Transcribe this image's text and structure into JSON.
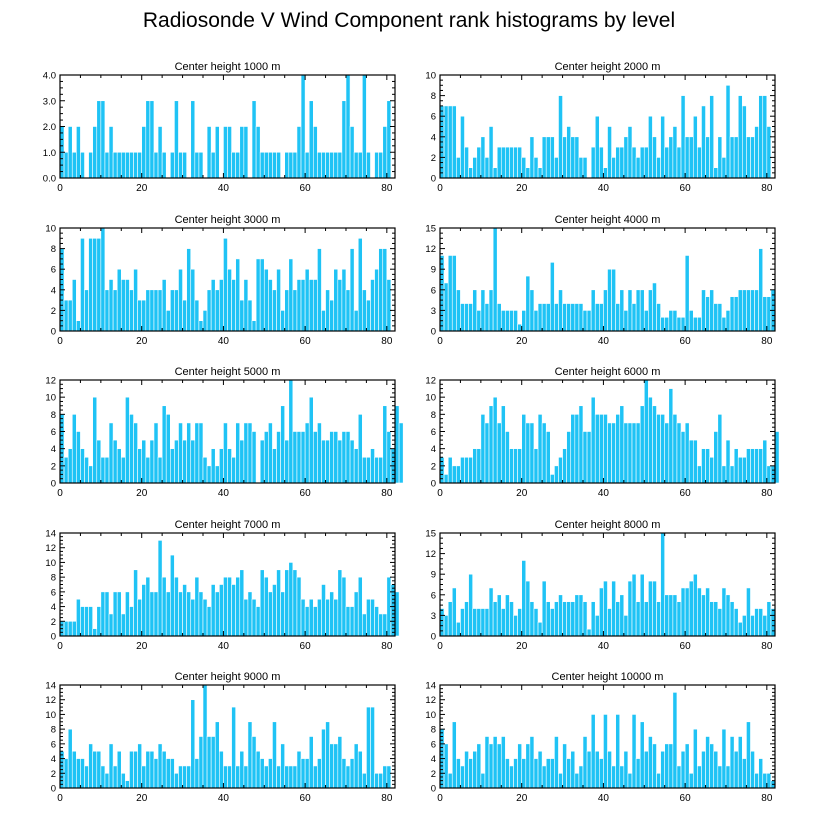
{
  "page": {
    "title": "Radiosonde V Wind Component rank histograms by level"
  },
  "style": {
    "bar_color": "#1FC3F5",
    "bar_edge": "#ffffff",
    "axis_color": "#000000"
  },
  "chart_data": [
    {
      "type": "bar",
      "title": "Center height 1000 m",
      "xlim": [
        0,
        82
      ],
      "ylim": [
        0,
        4
      ],
      "xticks": [
        0,
        20,
        40,
        60,
        80
      ],
      "yticks": [
        0,
        1,
        2,
        3,
        4
      ],
      "ytick_labels": [
        "0.0",
        "1.0",
        "2.0",
        "3.0",
        "4.0"
      ],
      "values": [
        2,
        1,
        2,
        1,
        2,
        1,
        0,
        1,
        2,
        3,
        3,
        1,
        2,
        1,
        1,
        1,
        1,
        1,
        1,
        1,
        2,
        3,
        3,
        1,
        2,
        1,
        0,
        1,
        3,
        1,
        1,
        0,
        3,
        1,
        1,
        0,
        2,
        1,
        2,
        0,
        2,
        2,
        1,
        1,
        2,
        2,
        0,
        3,
        2,
        1,
        1,
        1,
        1,
        1,
        0,
        1,
        1,
        1,
        2,
        4,
        1,
        3,
        2,
        1,
        1,
        1,
        1,
        1,
        1,
        3,
        4,
        2,
        1,
        1,
        4,
        1,
        0,
        1,
        1,
        2,
        3
      ]
    },
    {
      "type": "bar",
      "title": "Center height 2000 m",
      "xlim": [
        0,
        82
      ],
      "ylim": [
        0,
        10
      ],
      "xticks": [
        0,
        20,
        40,
        60,
        80
      ],
      "yticks": [
        0,
        2,
        4,
        6,
        8,
        10
      ],
      "ytick_labels": [
        "0",
        "2",
        "4",
        "6",
        "8",
        "10"
      ],
      "values": [
        7,
        7,
        7,
        7,
        2,
        6,
        3,
        1,
        2,
        3,
        4,
        2,
        5,
        1,
        3,
        3,
        3,
        3,
        3,
        3,
        2,
        1,
        4,
        2,
        1,
        4,
        4,
        4,
        2,
        8,
        4,
        5,
        4,
        4,
        2,
        2,
        0,
        3,
        6,
        3,
        1,
        5,
        2,
        3,
        3,
        4,
        5,
        3,
        2,
        3,
        3,
        6,
        4,
        2,
        6,
        3,
        4,
        5,
        3,
        8,
        4,
        4,
        6,
        3,
        7,
        4,
        8,
        1,
        4,
        2,
        9,
        4,
        4,
        8,
        7,
        4,
        4,
        5,
        8,
        8,
        5
      ]
    },
    {
      "type": "bar",
      "title": "Center height 3000 m",
      "xlim": [
        0,
        82
      ],
      "ylim": [
        0,
        10
      ],
      "xticks": [
        0,
        20,
        40,
        60,
        80
      ],
      "yticks": [
        0,
        2,
        4,
        6,
        8,
        10
      ],
      "ytick_labels": [
        "0",
        "2",
        "4",
        "6",
        "8",
        "10"
      ],
      "values": [
        8,
        3,
        3,
        5,
        1,
        9,
        4,
        9,
        9,
        9,
        10,
        4,
        5,
        4,
        6,
        5,
        5,
        4,
        6,
        3,
        3,
        4,
        4,
        4,
        4,
        5,
        2,
        4,
        4,
        6,
        3,
        8,
        6,
        3,
        1,
        2,
        4,
        5,
        4,
        5,
        9,
        6,
        5,
        7,
        3,
        5,
        3,
        1,
        7,
        7,
        6,
        5,
        4,
        6,
        2,
        4,
        7,
        4,
        5,
        5,
        6,
        5,
        5,
        8,
        2,
        4,
        3,
        6,
        5,
        6,
        4,
        8,
        2,
        9,
        4,
        3,
        5,
        6,
        8,
        8,
        5
      ]
    },
    {
      "type": "bar",
      "title": "Center height 4000 m",
      "xlim": [
        0,
        82
      ],
      "ylim": [
        0,
        15
      ],
      "xticks": [
        0,
        20,
        40,
        60,
        80
      ],
      "yticks": [
        0,
        3,
        6,
        9,
        12,
        15
      ],
      "ytick_labels": [
        "0",
        "3",
        "6",
        "9",
        "12",
        "15"
      ],
      "values": [
        11,
        7,
        11,
        11,
        6,
        4,
        4,
        4,
        6,
        3,
        6,
        4,
        6,
        15,
        4,
        3,
        3,
        3,
        3,
        1,
        3,
        8,
        6,
        3,
        4,
        4,
        4,
        10,
        4,
        6,
        4,
        4,
        4,
        4,
        4,
        3,
        3,
        6,
        4,
        4,
        6,
        9,
        9,
        4,
        6,
        3,
        6,
        4,
        6,
        6,
        3,
        6,
        7,
        4,
        2,
        2,
        3,
        3,
        2,
        2,
        11,
        3,
        2,
        2,
        6,
        5,
        6,
        4,
        4,
        2,
        3,
        5,
        5,
        6,
        6,
        6,
        6,
        6,
        12,
        5,
        5,
        6
      ]
    },
    {
      "type": "bar",
      "title": "Center height 5000 m",
      "xlim": [
        0,
        82
      ],
      "ylim": [
        0,
        12
      ],
      "xticks": [
        0,
        20,
        40,
        60,
        80
      ],
      "yticks": [
        0,
        2,
        4,
        6,
        8,
        10,
        12
      ],
      "ytick_labels": [
        "0",
        "2",
        "4",
        "6",
        "8",
        "10",
        "12"
      ],
      "values": [
        8,
        3,
        4,
        8,
        6,
        4,
        3,
        2,
        10,
        5,
        3,
        3,
        7,
        5,
        4,
        3,
        10,
        8,
        7,
        4,
        5,
        3,
        5,
        7,
        3,
        9,
        8,
        4,
        5,
        7,
        5,
        7,
        5,
        7,
        7,
        3,
        2,
        4,
        2,
        4,
        7,
        4,
        3,
        7,
        5,
        7,
        7,
        6,
        0,
        5,
        6,
        7,
        4,
        6,
        9,
        5,
        12,
        6,
        6,
        6,
        7,
        10,
        6,
        7,
        5,
        5,
        6,
        6,
        5,
        6,
        6,
        5,
        4,
        8,
        3,
        3,
        4,
        3,
        3,
        9,
        6,
        4,
        9,
        7
      ]
    },
    {
      "type": "bar",
      "title": "Center height 6000 m",
      "xlim": [
        0,
        82
      ],
      "ylim": [
        0,
        12
      ],
      "xticks": [
        0,
        20,
        40,
        60,
        80
      ],
      "yticks": [
        0,
        2,
        4,
        6,
        8,
        10,
        12
      ],
      "ytick_labels": [
        "0",
        "2",
        "4",
        "6",
        "8",
        "10",
        "12"
      ],
      "values": [
        3,
        1,
        3,
        2,
        2,
        3,
        3,
        3,
        4,
        4,
        8,
        7,
        9,
        10,
        7,
        9,
        6,
        4,
        4,
        4,
        8,
        7,
        7,
        4,
        8,
        7,
        6,
        1,
        2,
        3,
        4,
        6,
        8,
        8,
        9,
        6,
        6,
        10,
        8,
        8,
        8,
        7,
        7,
        8,
        9,
        7,
        7,
        7,
        7,
        9,
        12,
        10,
        9,
        8,
        8,
        7,
        11,
        8,
        7,
        6,
        7,
        5,
        5,
        2,
        4,
        4,
        3,
        6,
        8,
        2,
        5,
        2,
        4,
        3,
        3,
        4,
        4,
        4,
        4,
        5,
        2,
        2,
        6
      ]
    },
    {
      "type": "bar",
      "title": "Center height 7000 m",
      "xlim": [
        0,
        82
      ],
      "ylim": [
        0,
        14
      ],
      "xticks": [
        0,
        20,
        40,
        60,
        80
      ],
      "yticks": [
        0,
        2,
        4,
        6,
        8,
        10,
        12,
        14
      ],
      "ytick_labels": [
        "0",
        "2",
        "4",
        "6",
        "8",
        "10",
        "12",
        "14"
      ],
      "values": [
        2,
        2,
        2,
        2,
        5,
        4,
        4,
        4,
        1,
        4,
        6,
        6,
        3,
        6,
        6,
        3,
        6,
        4,
        9,
        5,
        7,
        8,
        6,
        6,
        13,
        8,
        6,
        11,
        8,
        6,
        7,
        6,
        5,
        8,
        6,
        5,
        4,
        7,
        6,
        7,
        8,
        8,
        7,
        8,
        9,
        5,
        6,
        5,
        4,
        9,
        8,
        6,
        7,
        9,
        6,
        9,
        10,
        9,
        8,
        5,
        4,
        5,
        4,
        5,
        7,
        5,
        6,
        5,
        9,
        8,
        4,
        4,
        6,
        8,
        3,
        5,
        5,
        4,
        3,
        3,
        8,
        7,
        6
      ]
    },
    {
      "type": "bar",
      "title": "Center height 8000 m",
      "xlim": [
        0,
        82
      ],
      "ylim": [
        0,
        15
      ],
      "xticks": [
        0,
        20,
        40,
        60,
        80
      ],
      "yticks": [
        0,
        3,
        6,
        9,
        12,
        15
      ],
      "ytick_labels": [
        "0",
        "3",
        "6",
        "9",
        "12",
        "15"
      ],
      "values": [
        4,
        3,
        5,
        7,
        2,
        4,
        5,
        9,
        4,
        4,
        4,
        4,
        7,
        5,
        6,
        4,
        6,
        5,
        3,
        4,
        11,
        8,
        5,
        4,
        2,
        8,
        5,
        4,
        5,
        6,
        5,
        5,
        5,
        6,
        6,
        5,
        1,
        5,
        3,
        7,
        8,
        4,
        8,
        5,
        6,
        3,
        8,
        9,
        5,
        9,
        5,
        8,
        8,
        5,
        15,
        6,
        6,
        6,
        5,
        7,
        7,
        8,
        9,
        7,
        6,
        7,
        5,
        5,
        4,
        7,
        6,
        5,
        4,
        2,
        3,
        7,
        3,
        4,
        4,
        3,
        5,
        4
      ]
    },
    {
      "type": "bar",
      "title": "Center height 9000 m",
      "xlim": [
        0,
        82
      ],
      "ylim": [
        0,
        14
      ],
      "xticks": [
        0,
        20,
        40,
        60,
        80
      ],
      "yticks": [
        0,
        2,
        4,
        6,
        8,
        10,
        12,
        14
      ],
      "ytick_labels": [
        "0",
        "2",
        "4",
        "6",
        "8",
        "10",
        "12",
        "14"
      ],
      "values": [
        5,
        4,
        8,
        5,
        4,
        4,
        3,
        6,
        5,
        5,
        3,
        2,
        6,
        3,
        5,
        2,
        1,
        5,
        5,
        6,
        3,
        5,
        5,
        4,
        6,
        5,
        4,
        4,
        2,
        3,
        3,
        3,
        12,
        4,
        7,
        14,
        7,
        7,
        9,
        5,
        3,
        3,
        11,
        3,
        5,
        3,
        9,
        7,
        5,
        4,
        3,
        4,
        9,
        3,
        6,
        3,
        3,
        3,
        5,
        4,
        4,
        7,
        3,
        4,
        8,
        9,
        6,
        6,
        7,
        4,
        3,
        4,
        6,
        5,
        2,
        11,
        11,
        2,
        2,
        3,
        3
      ]
    },
    {
      "type": "bar",
      "title": "Center height 10000 m",
      "xlim": [
        0,
        82
      ],
      "ylim": [
        0,
        14
      ],
      "xticks": [
        0,
        20,
        40,
        60,
        80
      ],
      "yticks": [
        0,
        2,
        4,
        6,
        8,
        10,
        12,
        14
      ],
      "ytick_labels": [
        "0",
        "2",
        "4",
        "6",
        "8",
        "10",
        "12",
        "14"
      ],
      "values": [
        8,
        6,
        2,
        9,
        4,
        3,
        5,
        4,
        5,
        6,
        2,
        7,
        6,
        7,
        6,
        7,
        4,
        3,
        4,
        6,
        4,
        6,
        7,
        4,
        5,
        3,
        4,
        4,
        7,
        2,
        6,
        4,
        5,
        2,
        3,
        7,
        5,
        10,
        5,
        4,
        10,
        5,
        3,
        10,
        3,
        5,
        2,
        10,
        4,
        9,
        5,
        7,
        6,
        2,
        5,
        6,
        6,
        13,
        3,
        5,
        6,
        2,
        8,
        3,
        5,
        7,
        6,
        5,
        3,
        8,
        3,
        7,
        5,
        7,
        4,
        9,
        5,
        2,
        4,
        2,
        2,
        1
      ]
    }
  ]
}
